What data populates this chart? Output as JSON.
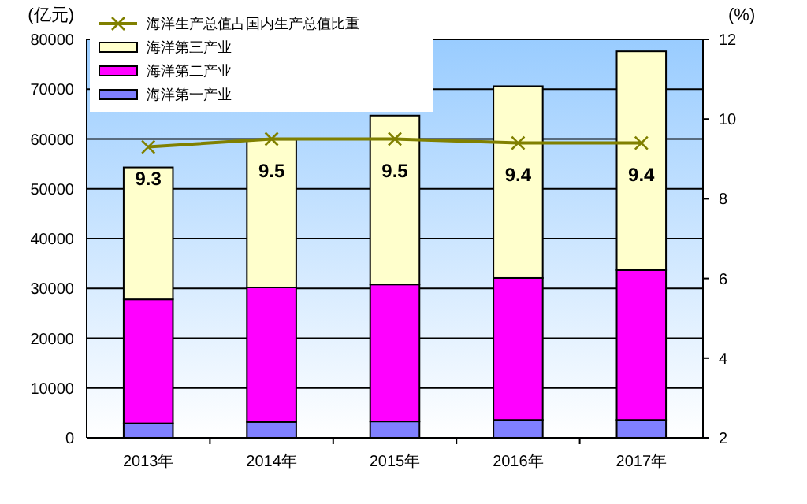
{
  "chart_data": {
    "type": "bar",
    "stacked": true,
    "ylabel": "(亿元)",
    "y2label": "(%)",
    "categories": [
      "2013年",
      "2014年",
      "2015年",
      "2016年",
      "2017年"
    ],
    "series": [
      {
        "name": "海洋第一产业",
        "color": "#8080ff",
        "values": [
          2900,
          3200,
          3300,
          3600,
          3600
        ]
      },
      {
        "name": "海洋第二产业",
        "color": "#ff00ff",
        "values": [
          24900,
          27000,
          27500,
          28500,
          30100
        ]
      },
      {
        "name": "海洋第三产业",
        "color": "#ffffcc",
        "values": [
          26500,
          29700,
          33900,
          38500,
          43900
        ]
      },
      {
        "name": "海洋生产总值占国内生产总值比重",
        "type": "line",
        "axis": "y2",
        "color": "#808000",
        "marker": "cross",
        "values": [
          9.3,
          9.5,
          9.5,
          9.4,
          9.4
        ],
        "data_labels": true
      }
    ],
    "ylim": [
      0,
      80000
    ],
    "yticks": [
      0,
      10000,
      20000,
      30000,
      40000,
      50000,
      60000,
      70000,
      80000
    ],
    "y2lim": [
      2,
      12
    ],
    "y2ticks": [
      2,
      4,
      6,
      8,
      10,
      12
    ],
    "grid": "y",
    "legend": "top left"
  }
}
